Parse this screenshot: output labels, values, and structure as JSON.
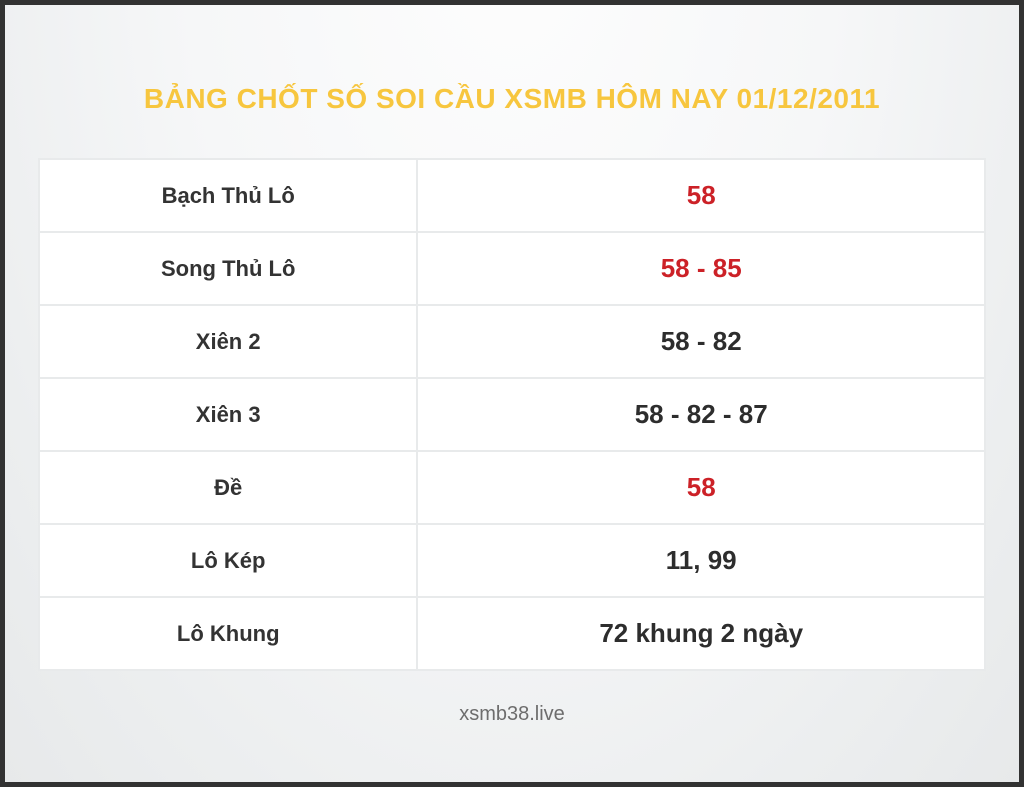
{
  "page": {
    "title": "BẢNG CHỐT SỐ SOI CẦU XSMB HÔM NAY 01/12/2011",
    "footer": "xsmb38.live"
  },
  "colors": {
    "title_gold": "#f7c63e",
    "value_red": "#cc2127",
    "value_dark": "#2d2d2d",
    "label_dark": "#333333",
    "frame_border": "#323232"
  },
  "table": {
    "rows": [
      {
        "label": "Bạch Thủ Lô",
        "value": "58",
        "tone": "red"
      },
      {
        "label": "Song Thủ Lô",
        "value": "58 - 85",
        "tone": "red"
      },
      {
        "label": "Xiên 2",
        "value": "58 - 82",
        "tone": "dark"
      },
      {
        "label": "Xiên 3",
        "value": "58 - 82 - 87",
        "tone": "dark"
      },
      {
        "label": "Đề",
        "value": "58",
        "tone": "red"
      },
      {
        "label": "Lô Kép",
        "value": "11, 99",
        "tone": "dark"
      },
      {
        "label": "Lô Khung",
        "value": "72 khung 2 ngày",
        "tone": "dark"
      }
    ]
  }
}
